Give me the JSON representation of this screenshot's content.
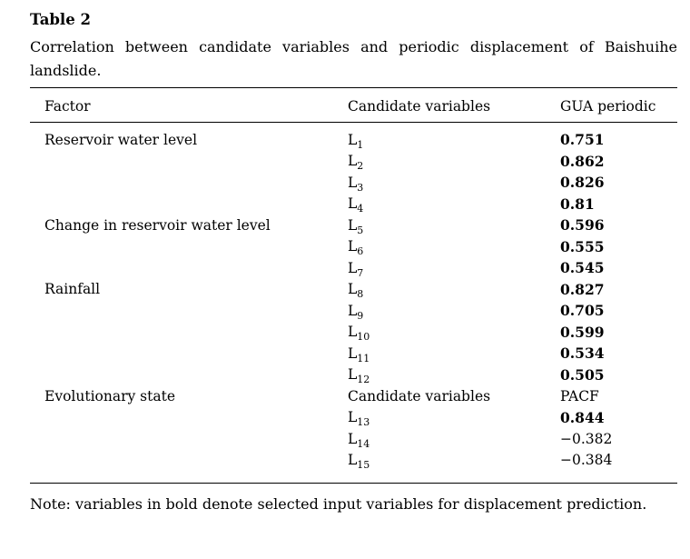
{
  "page": {
    "background_color": "#ffffff",
    "text_color": "#000000",
    "rule_color": "#000000"
  },
  "table": {
    "label": "Table 2",
    "caption": "Correlation between candidate variables and periodic displacement of Baishuihe landslide.",
    "columns": [
      "Factor",
      "Candidate variables",
      "GUA periodic"
    ],
    "rows": [
      {
        "factor": "Reservoir water level",
        "var_base": "L",
        "var_sub": "1",
        "value": "0.751",
        "value_bold": true
      },
      {
        "factor": "",
        "var_base": "L",
        "var_sub": "2",
        "value": "0.862",
        "value_bold": true
      },
      {
        "factor": "",
        "var_base": "L",
        "var_sub": "3",
        "value": "0.826",
        "value_bold": true
      },
      {
        "factor": "",
        "var_base": "L",
        "var_sub": "4",
        "value": "0.81",
        "value_bold": true
      },
      {
        "factor": "Change in reservoir water level",
        "var_base": "L",
        "var_sub": "5",
        "value": "0.596",
        "value_bold": true
      },
      {
        "factor": "",
        "var_base": "L",
        "var_sub": "6",
        "value": "0.555",
        "value_bold": true
      },
      {
        "factor": "",
        "var_base": "L",
        "var_sub": "7",
        "value": "0.545",
        "value_bold": true
      },
      {
        "factor": "Rainfall",
        "var_base": "L",
        "var_sub": "8",
        "value": "0.827",
        "value_bold": true
      },
      {
        "factor": "",
        "var_base": "L",
        "var_sub": "9",
        "value": "0.705",
        "value_bold": true
      },
      {
        "factor": "",
        "var_base": "L",
        "var_sub": "10",
        "value": "0.599",
        "value_bold": true
      },
      {
        "factor": "",
        "var_base": "L",
        "var_sub": "11",
        "value": "0.534",
        "value_bold": true
      },
      {
        "factor": "",
        "var_base": "L",
        "var_sub": "12",
        "value": "0.505",
        "value_bold": true
      },
      {
        "factor": "Evolutionary state",
        "var_text": "Candidate variables",
        "value": "PACF",
        "value_bold": false
      },
      {
        "factor": "",
        "var_base": "L",
        "var_sub": "13",
        "value": "0.844",
        "value_bold": true
      },
      {
        "factor": "",
        "var_base": "L",
        "var_sub": "14",
        "value": "−0.382",
        "value_bold": false
      },
      {
        "factor": "",
        "var_base": "L",
        "var_sub": "15",
        "value": "−0.384",
        "value_bold": false
      }
    ],
    "note": "Note: variables in bold denote selected input variables for displacement prediction."
  }
}
